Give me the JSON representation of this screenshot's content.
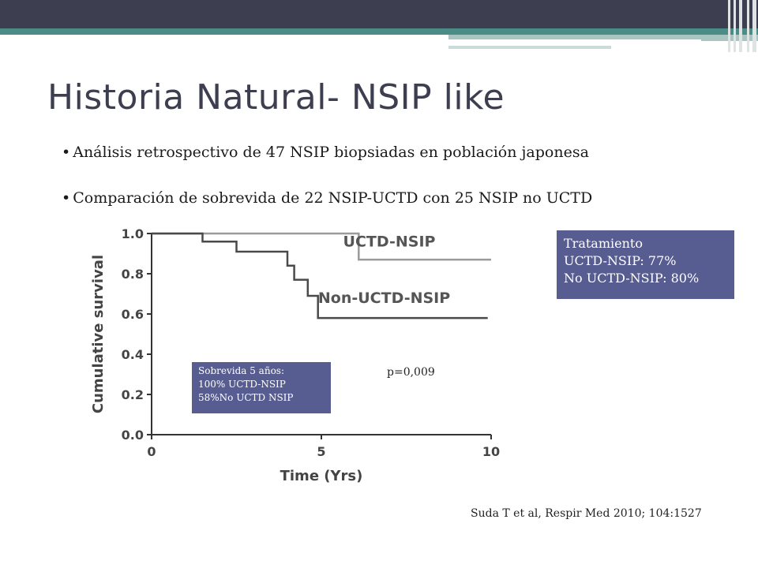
{
  "slide": {
    "title": "Historia Natural- NSIP like",
    "bullets": [
      "Análisis retrospectivo de 47 NSIP biopsiadas en población japonesa",
      "Comparación de sobrevida de 22 NSIP-UCTD con 25 NSIP no UCTD"
    ],
    "tratamiento": {
      "heading": "Tratamiento",
      "line1": "UCTD-NSIP: 77%",
      "line2": "No UCTD-NSIP: 80%"
    },
    "sobrevida": {
      "line1": "Sobrevida 5 años:",
      "line2": "100% UCTD-NSIP",
      "line3": "58%No UCTD NSIP"
    },
    "pvalue": "p=0,009",
    "citation": "Suda T et al, Respir Med 2010; 104:1527"
  },
  "chart_data": {
    "type": "line",
    "xlabel": "Time (Yrs)",
    "ylabel": "Cumulative survival",
    "xlim": [
      0,
      10
    ],
    "ylim": [
      0.0,
      1.0
    ],
    "x_ticks": [
      "0",
      "5",
      "10"
    ],
    "y_ticks": [
      "0.0",
      "0.2",
      "0.4",
      "0.6",
      "0.8",
      "1.0"
    ],
    "series": [
      {
        "name": "UCTD-NSIP",
        "color": "#9a9a9a",
        "steps": [
          [
            0,
            1.0
          ],
          [
            6.1,
            1.0
          ],
          [
            6.1,
            0.87
          ],
          [
            10,
            0.87
          ]
        ]
      },
      {
        "name": "Non-UCTD-NSIP",
        "color": "#4a4a4a",
        "steps": [
          [
            0,
            1.0
          ],
          [
            1.5,
            1.0
          ],
          [
            1.5,
            0.96
          ],
          [
            2.5,
            0.96
          ],
          [
            2.5,
            0.91
          ],
          [
            4.0,
            0.91
          ],
          [
            4.0,
            0.84
          ],
          [
            4.2,
            0.84
          ],
          [
            4.2,
            0.77
          ],
          [
            4.6,
            0.77
          ],
          [
            4.6,
            0.69
          ],
          [
            4.9,
            0.69
          ],
          [
            4.9,
            0.58
          ],
          [
            9.9,
            0.58
          ]
        ]
      }
    ],
    "annotations": [
      "UCTD-NSIP",
      "Non-UCTD-NSIP"
    ]
  }
}
